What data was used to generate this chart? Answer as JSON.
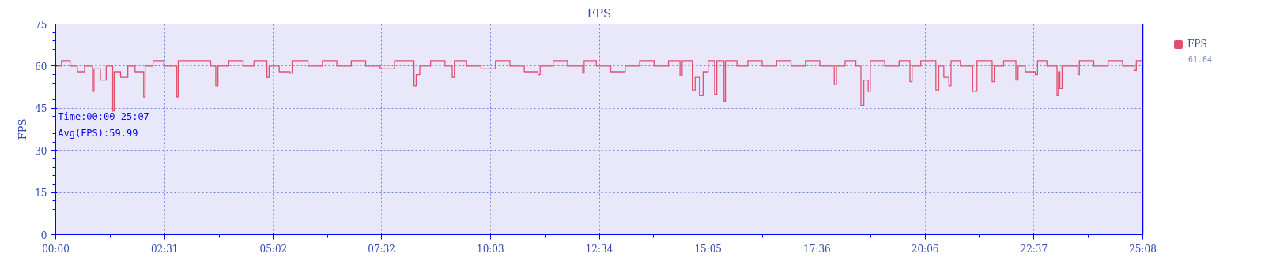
{
  "chart_data": {
    "type": "step",
    "title": "FPS",
    "ylabel": "FPS",
    "x": [
      0,
      8,
      20,
      30,
      40,
      51,
      53,
      62,
      70,
      79,
      81,
      90,
      100,
      110,
      122,
      124,
      135,
      150,
      168,
      170,
      200,
      215,
      222,
      225,
      240,
      260,
      275,
      293,
      296,
      310,
      325,
      328,
      350,
      370,
      390,
      410,
      430,
      450,
      470,
      497,
      500,
      505,
      520,
      540,
      550,
      553,
      570,
      590,
      610,
      630,
      650,
      669,
      672,
      690,
      710,
      731,
      733,
      750,
      770,
      790,
      810,
      830,
      850,
      866,
      869,
      883,
      887,
      893,
      898,
      905,
      914,
      917,
      927,
      929,
      945,
      960,
      980,
      1000,
      1020,
      1040,
      1060,
      1080,
      1083,
      1095,
      1110,
      1117,
      1121,
      1127,
      1130,
      1150,
      1170,
      1185,
      1188,
      1200,
      1221,
      1225,
      1232,
      1239,
      1242,
      1255,
      1272,
      1278,
      1299,
      1302,
      1315,
      1332,
      1335,
      1345,
      1359,
      1362,
      1375,
      1389,
      1391,
      1393,
      1396,
      1418,
      1420,
      1440,
      1460,
      1480,
      1496,
      1499,
      1508
    ],
    "series": [
      {
        "name": "FPS",
        "color": "#e0506e",
        "values": [
          60,
          62,
          60,
          58,
          60,
          51,
          59,
          55,
          60,
          44,
          58,
          56,
          60,
          58,
          49,
          60,
          62,
          60,
          49,
          62,
          62,
          60,
          53,
          60,
          62,
          60,
          62,
          56,
          60,
          58,
          57.5,
          62,
          60,
          62,
          60,
          62,
          60,
          59,
          62,
          53,
          57,
          60,
          62,
          60,
          56,
          62,
          60,
          59,
          62,
          60,
          58,
          57,
          60,
          62,
          60,
          57.5,
          62,
          60,
          58,
          60,
          62,
          60,
          62,
          56.5,
          62,
          51.5,
          56,
          49.5,
          58,
          62,
          50,
          62,
          47.5,
          62,
          60,
          62,
          60,
          62,
          60,
          62,
          60,
          53.5,
          60,
          62,
          60,
          46,
          55,
          51,
          62,
          60,
          62,
          54.5,
          60,
          62,
          51.5,
          60,
          56,
          53,
          62,
          60,
          51,
          62,
          54.5,
          60,
          62,
          55,
          60,
          58,
          57,
          62,
          60,
          49.5,
          58,
          52,
          60,
          57,
          62,
          60,
          62,
          60,
          58.5,
          62,
          62
        ]
      }
    ],
    "xlim": [
      0,
      1508
    ],
    "xticks": [
      {
        "value": 0,
        "label": "00:00"
      },
      {
        "value": 151,
        "label": "02:31"
      },
      {
        "value": 302,
        "label": "05:02"
      },
      {
        "value": 452,
        "label": "07:32"
      },
      {
        "value": 603,
        "label": "10:03"
      },
      {
        "value": 754,
        "label": "12:34"
      },
      {
        "value": 905,
        "label": "15:05"
      },
      {
        "value": 1056,
        "label": "17:36"
      },
      {
        "value": 1206,
        "label": "20:06"
      },
      {
        "value": 1357,
        "label": "22:37"
      },
      {
        "value": 1508,
        "label": "25:08"
      }
    ],
    "ylim": [
      0,
      75
    ],
    "yticks": [
      0,
      15,
      30,
      45,
      60,
      75
    ],
    "grid": true,
    "legend": "top right",
    "line_style": "solid",
    "annotations": [
      "Time:00:00-25:07",
      "Avg(FPS):59.99",
      "61.64"
    ]
  }
}
